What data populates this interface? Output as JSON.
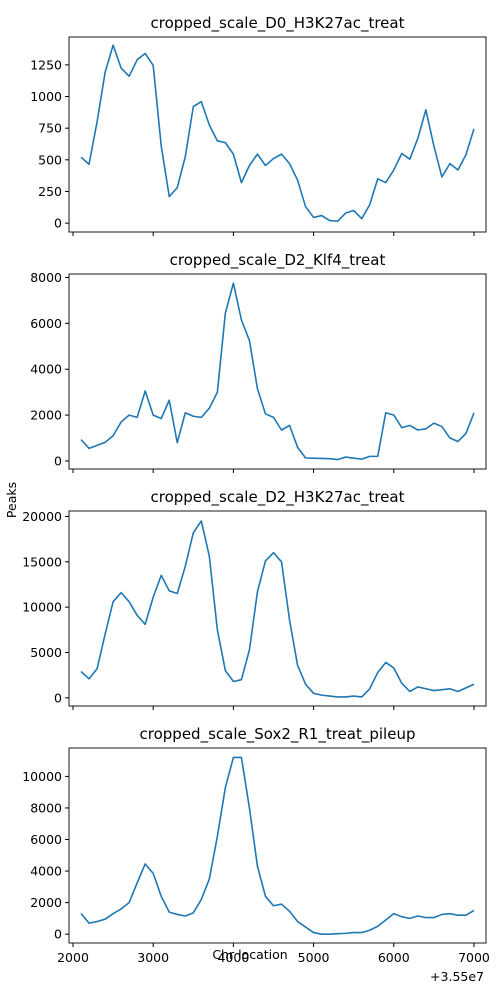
{
  "figure": {
    "ylabel": "Peaks",
    "xlabel": "Chr location",
    "x_offset_label": "+3.55e7",
    "line_color": "#1f77b4"
  },
  "chart_data": [
    {
      "type": "line",
      "title": "cropped_scale_D0_H3K27ac_treat",
      "xlim": [
        1950,
        7150
      ],
      "ylim": [
        -70,
        1470
      ],
      "yticks": [
        0,
        250,
        500,
        750,
        1000,
        1250
      ],
      "xticks": [
        2000,
        3000,
        4000,
        5000,
        6000,
        7000
      ],
      "show_xtick_labels": false,
      "x": [
        2100,
        2200,
        2300,
        2400,
        2500,
        2600,
        2700,
        2800,
        2900,
        3000,
        3100,
        3200,
        3300,
        3400,
        3500,
        3600,
        3700,
        3800,
        3900,
        4000,
        4100,
        4200,
        4300,
        4400,
        4500,
        4600,
        4700,
        4800,
        4900,
        5000,
        5100,
        5200,
        5300,
        5400,
        5500,
        5600,
        5700,
        5800,
        5900,
        6000,
        6100,
        6200,
        6300,
        6400,
        6500,
        6600,
        6700,
        6800,
        6900,
        7000
      ],
      "series": [
        {
          "values": [
            520,
            465,
            800,
            1190,
            1405,
            1225,
            1160,
            1290,
            1340,
            1245,
            610,
            210,
            280,
            525,
            920,
            960,
            775,
            650,
            635,
            545,
            320,
            455,
            545,
            455,
            510,
            545,
            470,
            340,
            130,
            45,
            60,
            20,
            15,
            80,
            100,
            35,
            145,
            350,
            320,
            420,
            550,
            505,
            670,
            895,
            610,
            365,
            470,
            420,
            540,
            745
          ]
        }
      ]
    },
    {
      "type": "line",
      "title": "cropped_scale_D2_Klf4_treat",
      "xlim": [
        1950,
        7150
      ],
      "ylim": [
        -350,
        8150
      ],
      "yticks": [
        0,
        2000,
        4000,
        6000,
        8000
      ],
      "xticks": [
        2000,
        3000,
        4000,
        5000,
        6000,
        7000
      ],
      "show_xtick_labels": false,
      "x": [
        2100,
        2200,
        2300,
        2400,
        2500,
        2600,
        2700,
        2800,
        2900,
        3000,
        3100,
        3200,
        3300,
        3400,
        3500,
        3600,
        3700,
        3800,
        3900,
        4000,
        4100,
        4200,
        4300,
        4400,
        4500,
        4600,
        4700,
        4800,
        4900,
        5000,
        5100,
        5200,
        5300,
        5400,
        5500,
        5600,
        5700,
        5800,
        5900,
        6000,
        6100,
        6200,
        6300,
        6400,
        6500,
        6600,
        6700,
        6800,
        6900,
        7000
      ],
      "series": [
        {
          "values": [
            930,
            550,
            680,
            810,
            1100,
            1700,
            2000,
            1900,
            3050,
            2000,
            1850,
            2650,
            800,
            2100,
            1950,
            1900,
            2300,
            3000,
            6450,
            7750,
            6150,
            5250,
            3150,
            2050,
            1900,
            1350,
            1550,
            600,
            130,
            120,
            110,
            100,
            60,
            170,
            120,
            80,
            200,
            200,
            2100,
            2000,
            1450,
            1550,
            1350,
            1400,
            1650,
            1500,
            1000,
            850,
            1200,
            2100
          ]
        }
      ]
    },
    {
      "type": "line",
      "title": "cropped_scale_D2_H3K27ac_treat",
      "xlim": [
        1950,
        7150
      ],
      "ylim": [
        -900,
        20600
      ],
      "yticks": [
        0,
        5000,
        10000,
        15000,
        20000
      ],
      "xticks": [
        2000,
        3000,
        4000,
        5000,
        6000,
        7000
      ],
      "show_xtick_labels": false,
      "x": [
        2100,
        2200,
        2300,
        2400,
        2500,
        2600,
        2700,
        2800,
        2900,
        3000,
        3100,
        3200,
        3300,
        3400,
        3500,
        3600,
        3700,
        3800,
        3900,
        4000,
        4100,
        4200,
        4300,
        4400,
        4500,
        4600,
        4700,
        4800,
        4900,
        5000,
        5100,
        5200,
        5300,
        5400,
        5500,
        5600,
        5700,
        5800,
        5900,
        6000,
        6100,
        6200,
        6300,
        6400,
        6500,
        6600,
        6700,
        6800,
        6900,
        7000
      ],
      "series": [
        {
          "values": [
            2900,
            2100,
            3200,
            7000,
            10600,
            11600,
            10600,
            9100,
            8100,
            11100,
            13500,
            11800,
            11500,
            14500,
            18200,
            19500,
            15600,
            7500,
            3000,
            1800,
            2000,
            5300,
            11700,
            15100,
            16000,
            15000,
            8600,
            3600,
            1500,
            500,
            300,
            200,
            100,
            100,
            200,
            100,
            1000,
            2800,
            3900,
            3300,
            1600,
            700,
            1200,
            1000,
            800,
            900,
            1000,
            700,
            1100,
            1500
          ]
        }
      ]
    },
    {
      "type": "line",
      "title": "cropped_scale_Sox2_R1_treat_pileup",
      "xlim": [
        1950,
        7150
      ],
      "ylim": [
        -560,
        11800
      ],
      "yticks": [
        0,
        2000,
        4000,
        6000,
        8000,
        10000
      ],
      "xticks": [
        2000,
        3000,
        4000,
        5000,
        6000,
        7000
      ],
      "show_xtick_labels": true,
      "x": [
        2100,
        2200,
        2300,
        2400,
        2500,
        2600,
        2700,
        2800,
        2900,
        3000,
        3100,
        3200,
        3300,
        3400,
        3500,
        3600,
        3700,
        3800,
        3900,
        4000,
        4100,
        4200,
        4300,
        4400,
        4500,
        4600,
        4700,
        4800,
        4900,
        5000,
        5100,
        5200,
        5300,
        5400,
        5500,
        5600,
        5700,
        5800,
        5900,
        6000,
        6100,
        6200,
        6300,
        6400,
        6500,
        6600,
        6700,
        6800,
        6900,
        7000
      ],
      "series": [
        {
          "values": [
            1300,
            700,
            800,
            950,
            1300,
            1600,
            2000,
            3250,
            4450,
            3850,
            2400,
            1400,
            1250,
            1150,
            1350,
            2200,
            3500,
            6200,
            9300,
            11200,
            11200,
            8000,
            4300,
            2400,
            1800,
            1900,
            1450,
            800,
            450,
            100,
            0,
            0,
            30,
            50,
            100,
            100,
            250,
            500,
            900,
            1300,
            1100,
            1000,
            1150,
            1050,
            1050,
            1250,
            1300,
            1200,
            1200,
            1500
          ]
        }
      ]
    }
  ]
}
